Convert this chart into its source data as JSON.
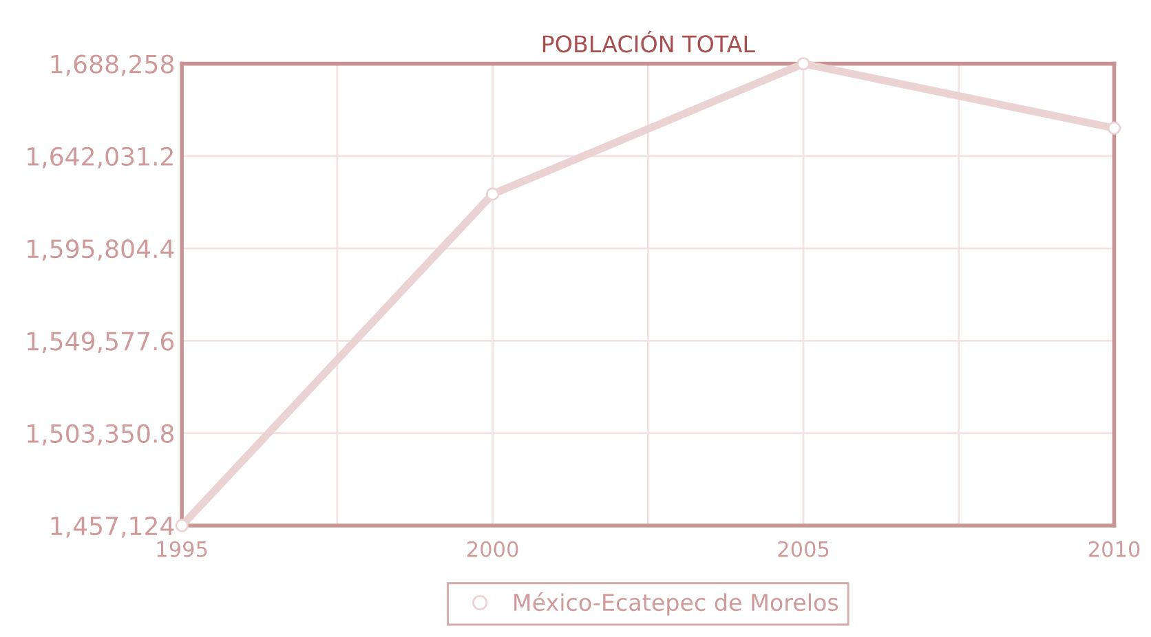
{
  "chart_data": {
    "type": "line",
    "title": "POBLACIÓN TOTAL",
    "x": [
      1995,
      2000,
      2005,
      2010
    ],
    "series": [
      {
        "name": "México-Ecatepec de Morelos",
        "color": "#ecd3d3",
        "values": [
          1457124,
          1623000,
          1688258,
          1656000
        ]
      }
    ],
    "xlim": [
      1995,
      2010
    ],
    "xticks": [
      1995,
      {
        "value": 1997.5,
        "label": null
      },
      2000,
      {
        "value": 2002.5,
        "label": null
      },
      2005,
      {
        "value": 2007.5,
        "label": null
      },
      2010
    ],
    "ylim": [
      1457124,
      1688258
    ],
    "yticks": [
      {
        "value": 1457124,
        "label": "1,457,124"
      },
      {
        "value": 1503350.8,
        "label": "1,503,350.8"
      },
      {
        "value": 1549577.6,
        "label": "1,549,577.6"
      },
      {
        "value": 1595804.4,
        "label": "1,595,804.4"
      },
      {
        "value": 1642031.2,
        "label": "1,642,031.2"
      },
      {
        "value": 1688258,
        "label": "1,688,258"
      }
    ],
    "grid": true,
    "legend": "bottom",
    "marker": "circle",
    "line_style": "solid"
  }
}
